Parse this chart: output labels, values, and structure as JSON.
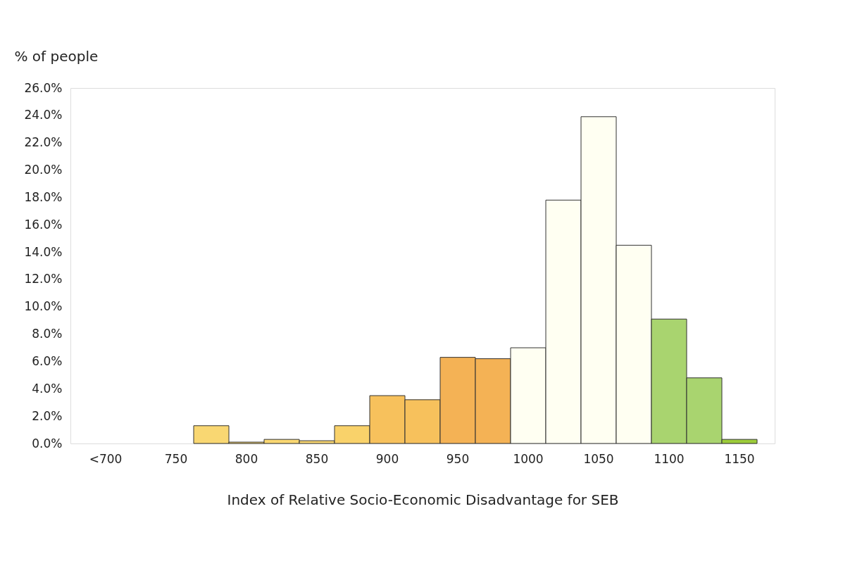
{
  "chart_data": {
    "type": "bar",
    "xlabel": "Index of Relative Socio-Economic Disadvantage for SEB",
    "ylabel": "% of people",
    "categories": [
      "<700",
      null,
      "750",
      null,
      "800",
      null,
      "850",
      null,
      "900",
      null,
      "950",
      null,
      "1000",
      null,
      "1050",
      null,
      "1100",
      null,
      "1150"
    ],
    "values": [
      null,
      null,
      null,
      1.3,
      0.1,
      0.3,
      0.2,
      1.3,
      3.5,
      3.2,
      6.3,
      6.2,
      7.0,
      17.8,
      23.9,
      14.5,
      9.1,
      4.8,
      0.3
    ],
    "colors": [
      "#f8d46a",
      "#f8d46a",
      "#f8d46a",
      "#f9d772",
      "#f9d772",
      "#f9d772",
      "#f9d772",
      "#f9d26a",
      "#f7c15c",
      "#f7c15c",
      "#f4b255",
      "#f4b255",
      "#fffff2",
      "#fffff2",
      "#fffff2",
      "#fffff2",
      "#a9d46f",
      "#a9d46f",
      "#9ccc3a"
    ],
    "ylim": [
      0,
      26
    ],
    "yticks": [
      {
        "value": 0,
        "label": "0.0%"
      },
      {
        "value": 2,
        "label": "2.0%"
      },
      {
        "value": 4,
        "label": "4.0%"
      },
      {
        "value": 6,
        "label": "6.0%"
      },
      {
        "value": 8,
        "label": "8.0%"
      },
      {
        "value": 10,
        "label": "10.0%"
      },
      {
        "value": 12,
        "label": "12.0%"
      },
      {
        "value": 14,
        "label": "14.0%"
      },
      {
        "value": 16,
        "label": "16.0%"
      },
      {
        "value": 18,
        "label": "18.0%"
      },
      {
        "value": 20,
        "label": "20.0%"
      },
      {
        "value": 22,
        "label": "22.0%"
      },
      {
        "value": 24,
        "label": "24.0%"
      },
      {
        "value": 26,
        "label": "26.0%"
      }
    ],
    "grid": false
  }
}
